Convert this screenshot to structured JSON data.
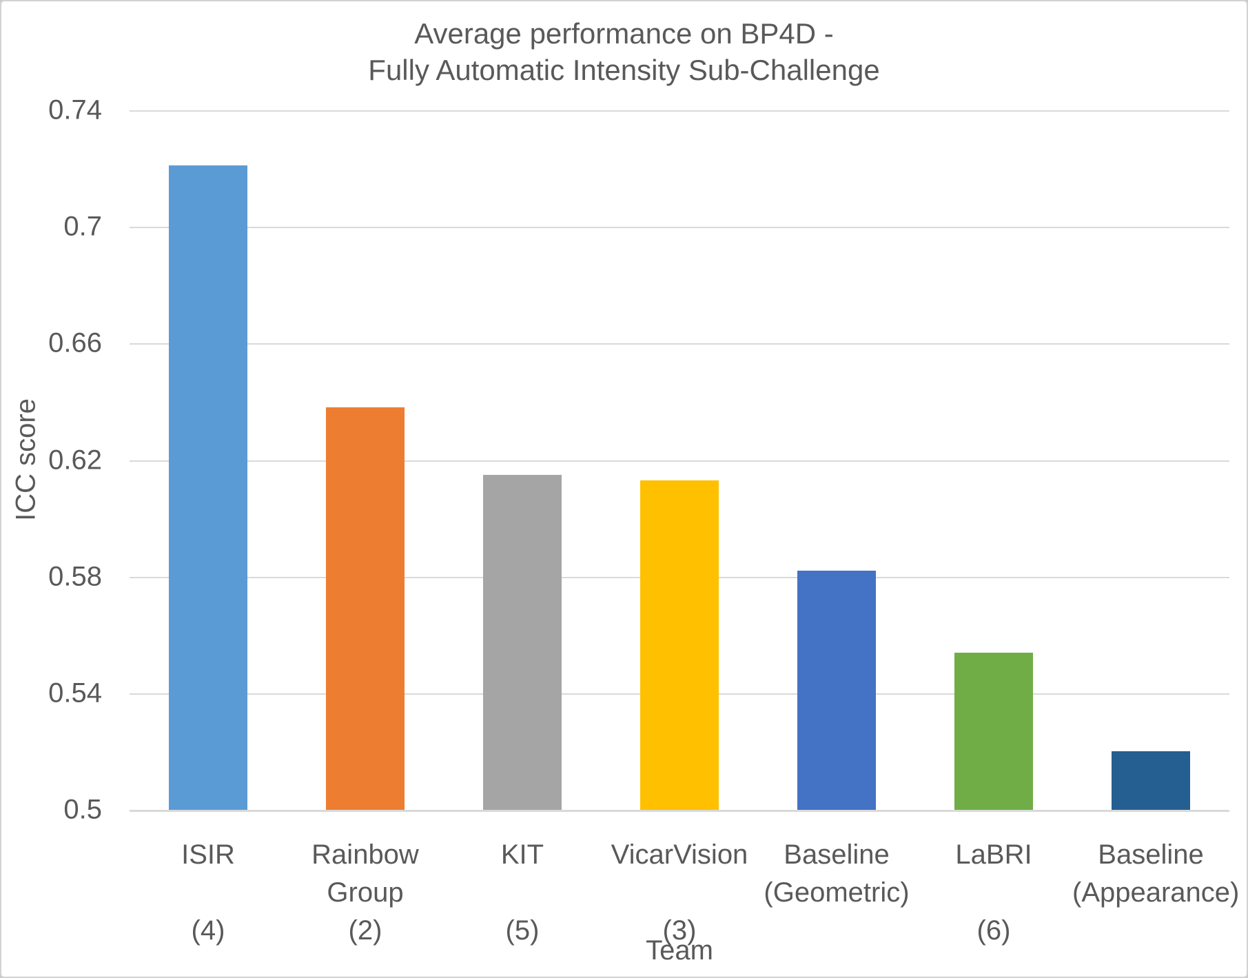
{
  "chart_data": {
    "type": "bar",
    "title_lines": [
      "Average performance on BP4D -",
      "Fully Automatic Intensity Sub-Challenge"
    ],
    "xlabel": "Team",
    "ylabel": "ICC score",
    "ylim": [
      0.5,
      0.74
    ],
    "y_ticks": [
      0.74,
      0.7,
      0.66,
      0.62,
      0.58,
      0.54,
      0.5
    ],
    "y_tick_labels": [
      "0.74",
      "0.7",
      "0.66",
      "0.62",
      "0.58",
      "0.54",
      "0.5"
    ],
    "grid": true,
    "legend": false,
    "categories": [
      {
        "name_lines": [
          "ISIR"
        ],
        "rank": "(4)",
        "value": 0.721,
        "color": "#5B9BD5"
      },
      {
        "name_lines": [
          "Rainbow",
          "Group"
        ],
        "rank": "(2)",
        "value": 0.638,
        "color": "#ED7D31"
      },
      {
        "name_lines": [
          "KIT"
        ],
        "rank": "(5)",
        "value": 0.615,
        "color": "#A5A5A5"
      },
      {
        "name_lines": [
          "VicarVision"
        ],
        "rank": "(3)",
        "value": 0.613,
        "color": "#FFC000"
      },
      {
        "name_lines": [
          "Baseline",
          "(Geometric)"
        ],
        "rank": "",
        "value": 0.582,
        "color": "#4472C4"
      },
      {
        "name_lines": [
          "LaBRI"
        ],
        "rank": "(6)",
        "value": 0.554,
        "color": "#70AD47"
      },
      {
        "name_lines": [
          "Baseline",
          "(Appearance)"
        ],
        "rank": "",
        "value": 0.52,
        "color": "#255E91"
      }
    ],
    "colors": {
      "grid": "#D9D9D9",
      "axis_line": "#D9D9D9",
      "text": "#595959",
      "background": "#FFFFFF",
      "frame_border": "#D2D2D2"
    }
  }
}
